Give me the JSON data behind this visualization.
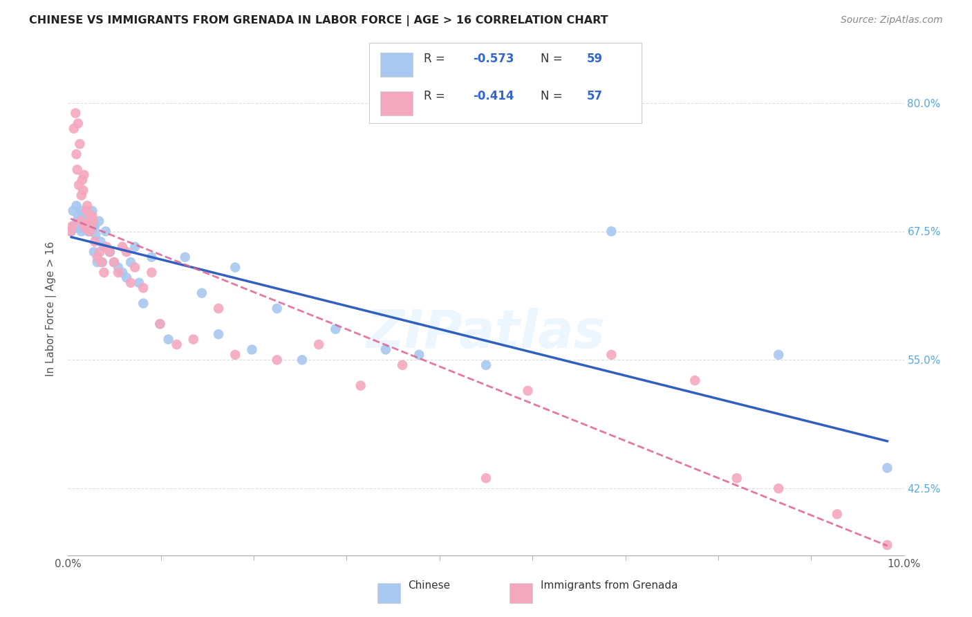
{
  "title": "CHINESE VS IMMIGRANTS FROM GRENADA IN LABOR FORCE | AGE > 16 CORRELATION CHART",
  "source": "Source: ZipAtlas.com",
  "ylabel": "In Labor Force | Age > 16",
  "yticks": [
    42.5,
    55.0,
    67.5,
    80.0
  ],
  "ytick_labels": [
    "42.5%",
    "55.0%",
    "67.5%",
    "80.0%"
  ],
  "xlim": [
    0.0,
    10.0
  ],
  "ylim": [
    36.0,
    84.0
  ],
  "legend_label1": "Chinese",
  "legend_label2": "Immigrants from Grenada",
  "R1": -0.573,
  "N1": 59,
  "R2": -0.414,
  "N2": 57,
  "color_blue": "#A8C8F0",
  "color_pink": "#F4A8BE",
  "line_color_blue": "#3060C0",
  "line_color_pink": "#E06090",
  "watermark": "ZIPatlas",
  "chinese_x": [
    0.04,
    0.06,
    0.08,
    0.1,
    0.11,
    0.12,
    0.13,
    0.14,
    0.15,
    0.16,
    0.17,
    0.18,
    0.19,
    0.2,
    0.21,
    0.22,
    0.23,
    0.24,
    0.25,
    0.26,
    0.27,
    0.28,
    0.29,
    0.3,
    0.31,
    0.32,
    0.33,
    0.35,
    0.37,
    0.39,
    0.41,
    0.43,
    0.45,
    0.5,
    0.55,
    0.6,
    0.65,
    0.7,
    0.75,
    0.8,
    0.85,
    0.9,
    1.0,
    1.1,
    1.2,
    1.4,
    1.6,
    1.8,
    2.0,
    2.2,
    2.5,
    2.8,
    3.2,
    3.8,
    4.2,
    5.0,
    6.5,
    8.5,
    9.8
  ],
  "chinese_y": [
    67.5,
    69.5,
    68.0,
    70.0,
    68.5,
    69.0,
    67.8,
    68.2,
    69.5,
    67.5,
    68.8,
    69.2,
    68.5,
    67.8,
    69.0,
    68.5,
    68.0,
    67.5,
    69.0,
    68.8,
    67.5,
    68.2,
    69.5,
    67.8,
    65.5,
    68.0,
    67.2,
    64.5,
    68.5,
    66.5,
    64.5,
    66.0,
    67.5,
    65.5,
    64.5,
    64.0,
    63.5,
    63.0,
    64.5,
    66.0,
    62.5,
    60.5,
    65.0,
    58.5,
    57.0,
    65.0,
    61.5,
    57.5,
    64.0,
    56.0,
    60.0,
    55.0,
    58.0,
    56.0,
    55.5,
    54.5,
    67.5,
    55.5,
    44.5
  ],
  "grenada_x": [
    0.03,
    0.05,
    0.07,
    0.09,
    0.1,
    0.11,
    0.12,
    0.13,
    0.14,
    0.15,
    0.16,
    0.17,
    0.18,
    0.19,
    0.2,
    0.21,
    0.22,
    0.23,
    0.24,
    0.25,
    0.26,
    0.27,
    0.28,
    0.29,
    0.3,
    0.32,
    0.35,
    0.38,
    0.4,
    0.43,
    0.46,
    0.5,
    0.55,
    0.6,
    0.65,
    0.7,
    0.75,
    0.8,
    0.9,
    1.0,
    1.1,
    1.3,
    1.5,
    1.8,
    2.0,
    2.5,
    3.0,
    3.5,
    4.0,
    5.0,
    5.5,
    6.5,
    7.5,
    8.0,
    8.5,
    9.2,
    9.8
  ],
  "grenada_y": [
    67.5,
    68.0,
    77.5,
    79.0,
    75.0,
    73.5,
    78.0,
    72.0,
    76.0,
    68.5,
    71.0,
    72.5,
    71.5,
    73.0,
    68.0,
    67.8,
    69.5,
    70.0,
    67.8,
    68.5,
    67.5,
    68.2,
    68.8,
    69.0,
    68.5,
    66.5,
    65.0,
    65.5,
    64.5,
    63.5,
    66.0,
    65.5,
    64.5,
    63.5,
    66.0,
    65.5,
    62.5,
    64.0,
    62.0,
    63.5,
    58.5,
    56.5,
    57.0,
    60.0,
    55.5,
    55.0,
    56.5,
    52.5,
    54.5,
    43.5,
    52.0,
    55.5,
    53.0,
    43.5,
    42.5,
    40.0,
    37.0
  ]
}
